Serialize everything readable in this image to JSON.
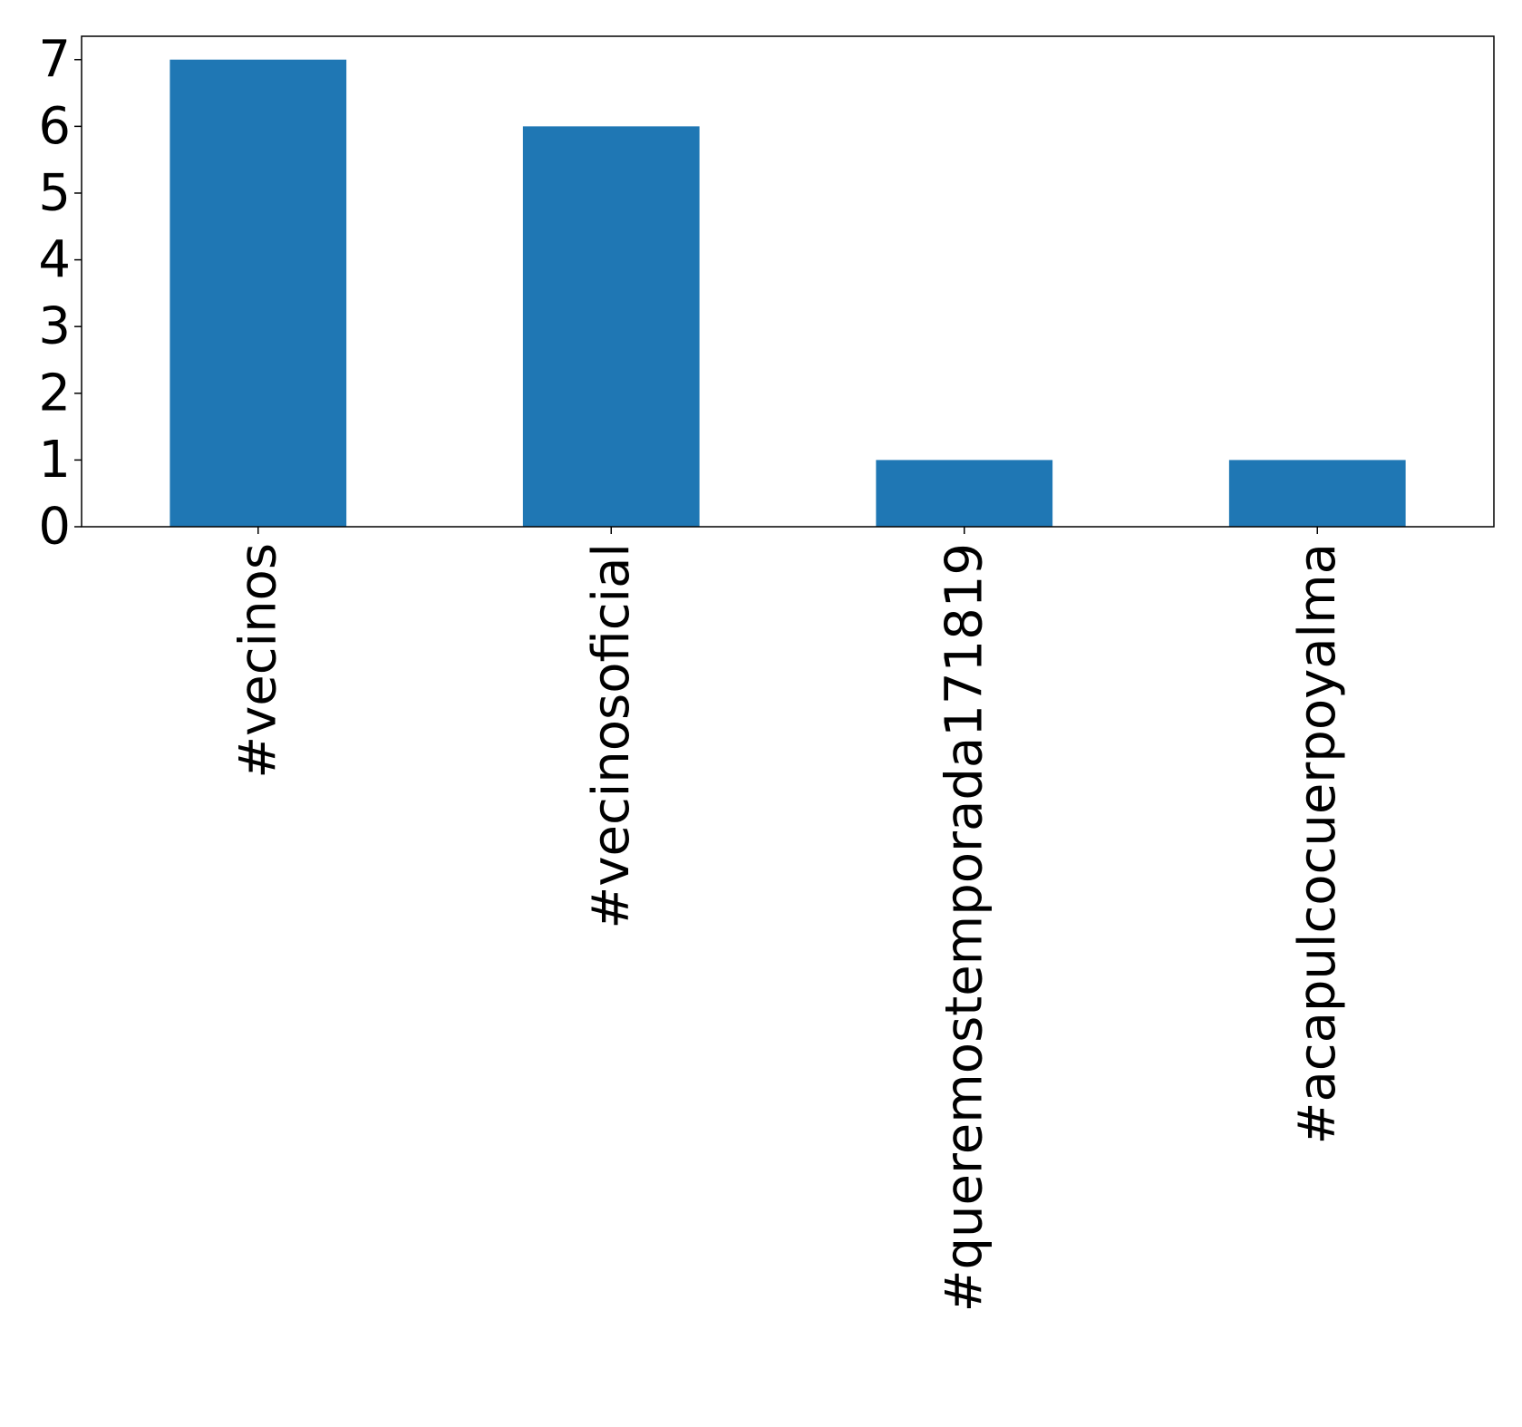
{
  "chart_data": {
    "type": "bar",
    "title": "",
    "xlabel": "",
    "ylabel": "",
    "categories": [
      "#vecinos",
      "#vecinosoficial",
      "#queremostemporada171819",
      "#acapulcocuerpoyalma"
    ],
    "values": [
      7,
      6,
      1,
      1
    ],
    "ylim": [
      0,
      7.35
    ],
    "yticks": [
      0,
      1,
      2,
      3,
      4,
      5,
      6,
      7
    ],
    "bar_color": "#1f77b4",
    "grid": false,
    "legend": "none"
  }
}
